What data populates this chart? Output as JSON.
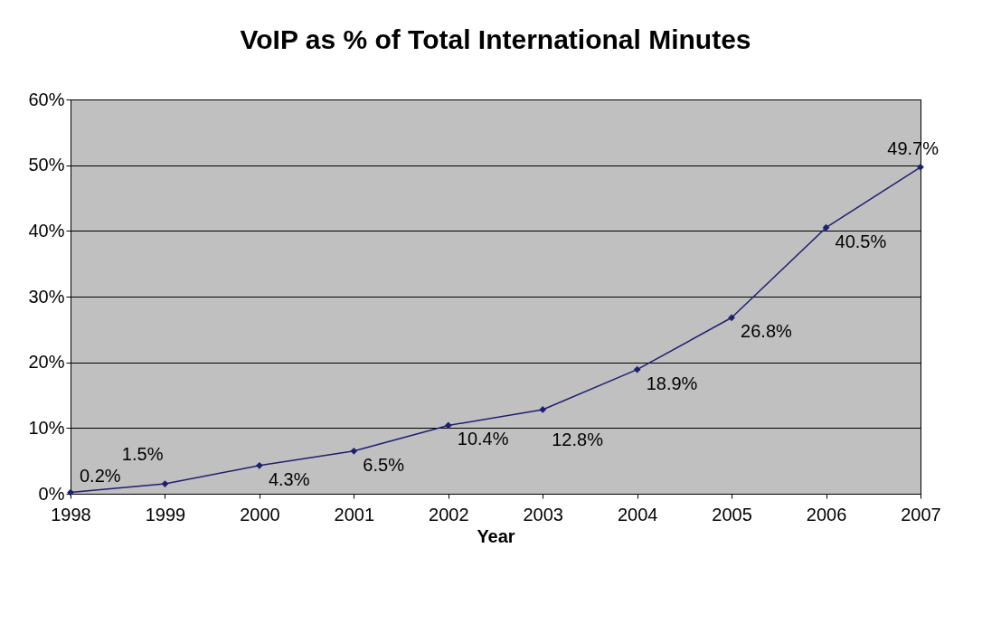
{
  "chart_data": {
    "type": "line",
    "title": "VoIP as % of Total International Minutes",
    "xlabel": "Year",
    "categories": [
      "1998",
      "1999",
      "2000",
      "2001",
      "2002",
      "2003",
      "2004",
      "2005",
      "2006",
      "2007"
    ],
    "series": [
      {
        "color": "#1f1f6e",
        "values": [
          0.2,
          1.5,
          4.3,
          6.5,
          10.4,
          12.8,
          18.9,
          26.8,
          40.5,
          49.7
        ],
        "value_labels": [
          "0.2%",
          "1.5%",
          "4.3%",
          "6.5%",
          "10.4%",
          "12.8%",
          "18.9%",
          "26.8%",
          "40.5%",
          "49.7%"
        ]
      }
    ],
    "ylim": [
      0,
      60
    ],
    "yticks": [
      {
        "value": 0,
        "label": "0%"
      },
      {
        "value": 10,
        "label": "10%"
      },
      {
        "value": 20,
        "label": "20%"
      },
      {
        "value": 30,
        "label": "30%"
      },
      {
        "value": 40,
        "label": "40%"
      },
      {
        "value": 50,
        "label": "50%"
      },
      {
        "value": 60,
        "label": "60%"
      }
    ],
    "grid": "y",
    "marker": "diamond",
    "line_style": "solid"
  }
}
